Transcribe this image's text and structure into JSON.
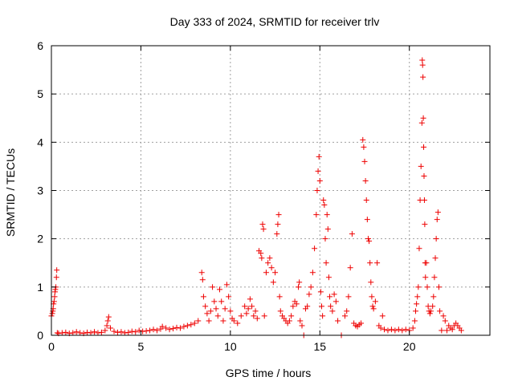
{
  "chart_data": {
    "type": "scatter",
    "title": "Day 333 of 2024, SRMTID for receiver trlv",
    "xlabel": "GPS time / hours",
    "ylabel": "SRMTID / TECUs",
    "xlim": [
      0,
      24.5
    ],
    "ylim": [
      0,
      6
    ],
    "xticks": [
      0,
      5,
      10,
      15,
      20
    ],
    "yticks": [
      0,
      1,
      2,
      3,
      4,
      5,
      6
    ],
    "grid": true,
    "marker": "+",
    "color": "#ee0000",
    "series": [
      {
        "values": [
          [
            0.0,
            0.4
          ],
          [
            0.05,
            0.45
          ],
          [
            0.08,
            0.5
          ],
          [
            0.1,
            0.55
          ],
          [
            0.12,
            0.65
          ],
          [
            0.15,
            0.7
          ],
          [
            0.18,
            0.8
          ],
          [
            0.2,
            0.9
          ],
          [
            0.22,
            0.95
          ],
          [
            0.25,
            1.0
          ],
          [
            0.28,
            1.2
          ],
          [
            0.3,
            1.35
          ],
          [
            0.33,
            0.05
          ],
          [
            0.4,
            0.04
          ],
          [
            0.6,
            0.05
          ],
          [
            0.8,
            0.06
          ],
          [
            1.0,
            0.04
          ],
          [
            1.2,
            0.05
          ],
          [
            1.4,
            0.07
          ],
          [
            1.6,
            0.05
          ],
          [
            1.8,
            0.04
          ],
          [
            2.0,
            0.06
          ],
          [
            2.2,
            0.05
          ],
          [
            2.4,
            0.07
          ],
          [
            2.6,
            0.05
          ],
          [
            2.8,
            0.06
          ],
          [
            3.0,
            0.1
          ],
          [
            3.1,
            0.2
          ],
          [
            3.15,
            0.3
          ],
          [
            3.2,
            0.38
          ],
          [
            3.3,
            0.15
          ],
          [
            3.5,
            0.08
          ],
          [
            3.7,
            0.06
          ],
          [
            3.9,
            0.07
          ],
          [
            4.1,
            0.05
          ],
          [
            4.3,
            0.06
          ],
          [
            4.5,
            0.08
          ],
          [
            4.7,
            0.07
          ],
          [
            4.9,
            0.1
          ],
          [
            5.1,
            0.08
          ],
          [
            5.3,
            0.09
          ],
          [
            5.5,
            0.1
          ],
          [
            5.7,
            0.12
          ],
          [
            5.9,
            0.1
          ],
          [
            6.1,
            0.13
          ],
          [
            6.2,
            0.18
          ],
          [
            6.4,
            0.15
          ],
          [
            6.6,
            0.12
          ],
          [
            6.8,
            0.14
          ],
          [
            7.0,
            0.16
          ],
          [
            7.2,
            0.15
          ],
          [
            7.4,
            0.18
          ],
          [
            7.6,
            0.2
          ],
          [
            7.8,
            0.22
          ],
          [
            8.0,
            0.25
          ],
          [
            8.2,
            0.3
          ],
          [
            8.4,
            1.3
          ],
          [
            8.45,
            1.15
          ],
          [
            8.5,
            0.8
          ],
          [
            8.6,
            0.6
          ],
          [
            8.7,
            0.45
          ],
          [
            8.8,
            0.3
          ],
          [
            8.9,
            0.5
          ],
          [
            9.0,
            1.0
          ],
          [
            9.1,
            0.7
          ],
          [
            9.2,
            0.55
          ],
          [
            9.3,
            0.4
          ],
          [
            9.4,
            0.95
          ],
          [
            9.5,
            0.7
          ],
          [
            9.6,
            0.3
          ],
          [
            9.7,
            0.55
          ],
          [
            9.8,
            1.05
          ],
          [
            9.9,
            0.8
          ],
          [
            10.0,
            0.5
          ],
          [
            10.1,
            0.35
          ],
          [
            10.2,
            0.3
          ],
          [
            10.4,
            0.25
          ],
          [
            10.6,
            0.4
          ],
          [
            10.8,
            0.6
          ],
          [
            10.9,
            0.45
          ],
          [
            11.0,
            0.55
          ],
          [
            11.1,
            0.75
          ],
          [
            11.2,
            0.6
          ],
          [
            11.3,
            0.4
          ],
          [
            11.4,
            0.5
          ],
          [
            11.5,
            0.35
          ],
          [
            11.6,
            1.75
          ],
          [
            11.7,
            1.7
          ],
          [
            11.75,
            1.6
          ],
          [
            11.8,
            2.3
          ],
          [
            11.85,
            2.2
          ],
          [
            11.9,
            0.4
          ],
          [
            12.0,
            1.3
          ],
          [
            12.1,
            1.5
          ],
          [
            12.2,
            1.6
          ],
          [
            12.3,
            1.4
          ],
          [
            12.4,
            1.1
          ],
          [
            12.5,
            1.3
          ],
          [
            12.6,
            2.1
          ],
          [
            12.65,
            2.3
          ],
          [
            12.7,
            2.5
          ],
          [
            12.75,
            0.8
          ],
          [
            12.8,
            0.5
          ],
          [
            12.9,
            0.4
          ],
          [
            13.0,
            0.35
          ],
          [
            13.1,
            0.3
          ],
          [
            13.2,
            0.25
          ],
          [
            13.3,
            0.3
          ],
          [
            13.4,
            0.4
          ],
          [
            13.5,
            0.6
          ],
          [
            13.6,
            0.7
          ],
          [
            13.7,
            0.65
          ],
          [
            13.8,
            1.0
          ],
          [
            13.85,
            1.1
          ],
          [
            13.9,
            0.3
          ],
          [
            14.0,
            0.2
          ],
          [
            14.1,
            0.0
          ],
          [
            14.2,
            0.55
          ],
          [
            14.3,
            0.6
          ],
          [
            14.4,
            0.85
          ],
          [
            14.5,
            1.0
          ],
          [
            14.6,
            1.3
          ],
          [
            14.7,
            1.8
          ],
          [
            14.8,
            2.5
          ],
          [
            14.85,
            3.0
          ],
          [
            14.9,
            3.4
          ],
          [
            14.95,
            3.7
          ],
          [
            15.0,
            3.2
          ],
          [
            15.05,
            0.9
          ],
          [
            15.1,
            0.6
          ],
          [
            15.15,
            0.4
          ],
          [
            15.2,
            2.8
          ],
          [
            15.25,
            2.7
          ],
          [
            15.3,
            2.0
          ],
          [
            15.35,
            1.5
          ],
          [
            15.4,
            2.5
          ],
          [
            15.45,
            2.2
          ],
          [
            15.5,
            1.2
          ],
          [
            15.55,
            0.8
          ],
          [
            15.6,
            0.6
          ],
          [
            15.7,
            0.5
          ],
          [
            15.8,
            0.85
          ],
          [
            15.9,
            0.7
          ],
          [
            16.0,
            0.3
          ],
          [
            16.2,
            0.0
          ],
          [
            16.4,
            0.4
          ],
          [
            16.5,
            0.5
          ],
          [
            16.6,
            0.8
          ],
          [
            16.7,
            1.4
          ],
          [
            16.8,
            2.1
          ],
          [
            16.9,
            0.25
          ],
          [
            17.0,
            0.2
          ],
          [
            17.1,
            0.18
          ],
          [
            17.2,
            0.22
          ],
          [
            17.3,
            0.25
          ],
          [
            17.4,
            4.05
          ],
          [
            17.45,
            3.9
          ],
          [
            17.5,
            3.6
          ],
          [
            17.55,
            3.2
          ],
          [
            17.6,
            2.8
          ],
          [
            17.65,
            2.4
          ],
          [
            17.7,
            2.0
          ],
          [
            17.75,
            1.95
          ],
          [
            17.8,
            1.5
          ],
          [
            17.85,
            1.1
          ],
          [
            17.9,
            0.8
          ],
          [
            17.95,
            0.6
          ],
          [
            18.0,
            0.55
          ],
          [
            18.1,
            0.7
          ],
          [
            18.2,
            1.5
          ],
          [
            18.3,
            0.2
          ],
          [
            18.4,
            0.15
          ],
          [
            18.5,
            0.4
          ],
          [
            18.6,
            0.12
          ],
          [
            18.8,
            0.1
          ],
          [
            19.0,
            0.12
          ],
          [
            19.2,
            0.1
          ],
          [
            19.4,
            0.12
          ],
          [
            19.6,
            0.1
          ],
          [
            19.8,
            0.12
          ],
          [
            20.0,
            0.1
          ],
          [
            20.2,
            0.15
          ],
          [
            20.3,
            0.3
          ],
          [
            20.35,
            0.5
          ],
          [
            20.4,
            0.65
          ],
          [
            20.45,
            0.8
          ],
          [
            20.5,
            1.0
          ],
          [
            20.55,
            1.8
          ],
          [
            20.6,
            2.8
          ],
          [
            20.65,
            3.5
          ],
          [
            20.7,
            4.4
          ],
          [
            20.72,
            5.7
          ],
          [
            20.74,
            5.6
          ],
          [
            20.76,
            5.35
          ],
          [
            20.78,
            4.5
          ],
          [
            20.8,
            3.9
          ],
          [
            20.82,
            3.3
          ],
          [
            20.84,
            2.8
          ],
          [
            20.86,
            2.3
          ],
          [
            20.88,
            1.5
          ],
          [
            20.9,
            1.2
          ],
          [
            20.95,
            1.5
          ],
          [
            21.0,
            1.0
          ],
          [
            21.05,
            0.6
          ],
          [
            21.1,
            0.5
          ],
          [
            21.15,
            0.45
          ],
          [
            21.2,
            0.5
          ],
          [
            21.3,
            0.6
          ],
          [
            21.35,
            0.8
          ],
          [
            21.4,
            1.2
          ],
          [
            21.45,
            1.6
          ],
          [
            21.5,
            2.0
          ],
          [
            21.55,
            2.4
          ],
          [
            21.6,
            2.55
          ],
          [
            21.65,
            1.0
          ],
          [
            21.7,
            0.5
          ],
          [
            21.8,
            0.1
          ],
          [
            21.9,
            0.4
          ],
          [
            22.0,
            0.3
          ],
          [
            22.1,
            0.1
          ],
          [
            22.2,
            0.2
          ],
          [
            22.3,
            0.15
          ],
          [
            22.4,
            0.12
          ],
          [
            22.5,
            0.2
          ],
          [
            22.6,
            0.25
          ],
          [
            22.7,
            0.2
          ],
          [
            22.8,
            0.15
          ],
          [
            22.9,
            0.1
          ]
        ]
      }
    ]
  }
}
